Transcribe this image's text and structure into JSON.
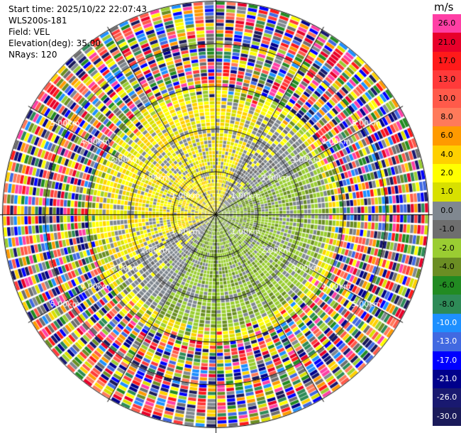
{
  "info": {
    "start_time": "Start time: 2025/10/22 22:07:43",
    "instrument": "WLS200s-181",
    "field": "Field: VEL",
    "elevation": "Elevation(deg): 35.00",
    "nrays": "NRays: 120"
  },
  "colorbar": {
    "unit": "m/s",
    "bins": [
      {
        "label": "26.0",
        "color": "#ff3fa5"
      },
      {
        "label": "21.0",
        "color": "#e8002a"
      },
      {
        "label": "17.0",
        "color": "#ff1a1a"
      },
      {
        "label": "13.0",
        "color": "#ff3a3a"
      },
      {
        "label": "10.0",
        "color": "#ff5a4a"
      },
      {
        "label": "8.0",
        "color": "#ff7a5a"
      },
      {
        "label": "6.0",
        "color": "#ff9a00"
      },
      {
        "label": "4.0",
        "color": "#ffd000"
      },
      {
        "label": "2.0",
        "color": "#ffff00"
      },
      {
        "label": "1.0",
        "color": "#d8e000"
      },
      {
        "label": "0.0",
        "color": "#808890"
      },
      {
        "label": "-1.0",
        "color": "#6e6e6e"
      },
      {
        "label": "-2.0",
        "color": "#9acd32"
      },
      {
        "label": "-4.0",
        "color": "#6b8e23"
      },
      {
        "label": "-6.0",
        "color": "#228b22"
      },
      {
        "label": "-8.0",
        "color": "#2e8b57"
      },
      {
        "label": "-10.0",
        "color": "#1e90ff"
      },
      {
        "label": "-13.0",
        "color": "#4169e1"
      },
      {
        "label": "-17.0",
        "color": "#0000ff"
      },
      {
        "label": "-21.0",
        "color": "#00008b"
      },
      {
        "label": "-26.0",
        "color": "#191970"
      },
      {
        "label": "-30.0",
        "color": "#1a1a5a"
      }
    ]
  },
  "chart_data": {
    "type": "heatmap",
    "projection": "polar PPI",
    "field": "VEL",
    "nrays": 120,
    "max_range_km": 5.0,
    "range_rings_km": [
      1.0,
      2.0,
      3.0,
      4.0,
      5.0
    ],
    "ring_labels": [
      "1.00km",
      "2.00km",
      "3.00km",
      "4.00km",
      "5.00km"
    ],
    "vmin": -30.0,
    "vmax": 30.0,
    "pattern": {
      "near_field_positive_sector": "north-west",
      "near_field_negative_sector": "south-east",
      "outer_ring_start_km": 3.0,
      "outer_ring_state": "noisy"
    }
  }
}
